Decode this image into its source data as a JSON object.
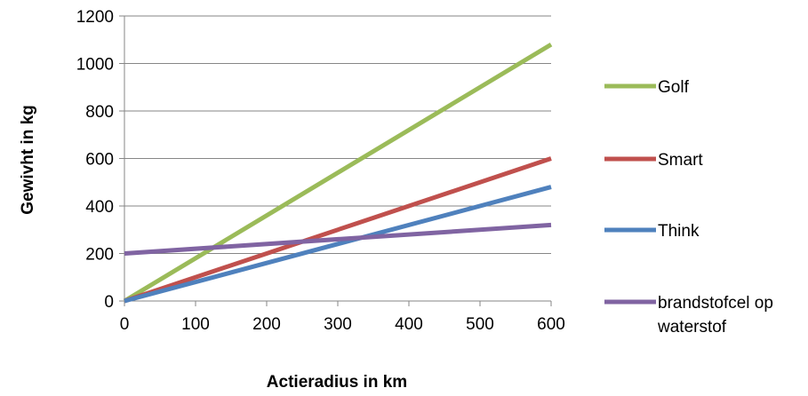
{
  "chart_data": {
    "type": "line",
    "title": "",
    "xlabel": "Actieradius in km",
    "ylabel": "Gewivht in kg",
    "xlim": [
      0,
      600
    ],
    "ylim": [
      0,
      1200
    ],
    "xticks": [
      0,
      100,
      200,
      300,
      400,
      500,
      600
    ],
    "yticks": [
      0,
      200,
      400,
      600,
      800,
      1000,
      1200
    ],
    "grid": "horizontal",
    "legend_position": "right",
    "series": [
      {
        "name": "Golf",
        "color": "#9BBB59",
        "x": [
          0,
          600
        ],
        "y": [
          0,
          1080
        ]
      },
      {
        "name": "Smart",
        "color": "#C0504D",
        "x": [
          0,
          600
        ],
        "y": [
          0,
          600
        ]
      },
      {
        "name": "Think",
        "color": "#4F81BD",
        "x": [
          0,
          600
        ],
        "y": [
          0,
          480
        ]
      },
      {
        "name": "brandstofcel op waterstof",
        "legend_lines": [
          "brandstofcel op",
          "waterstof"
        ],
        "color": "#8064A2",
        "x": [
          0,
          600
        ],
        "y": [
          200,
          320
        ]
      }
    ]
  }
}
